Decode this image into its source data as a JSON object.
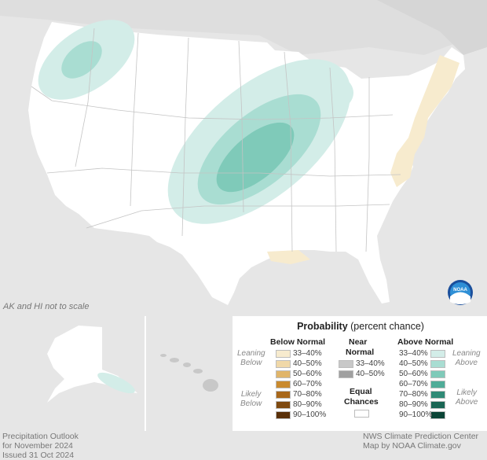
{
  "map_note": "AK and HI not to scale",
  "legend": {
    "title_bold": "Probability",
    "title_rest": " (percent chance)",
    "below_header": "Below Normal",
    "near_header_line1": "Near",
    "near_header_line2": "Normal",
    "above_header": "Above Normal",
    "equal_line1": "Equal",
    "equal_line2": "Chances",
    "leaning_below_1": "Leaning",
    "leaning_below_2": "Below",
    "likely_below_1": "Likely",
    "likely_below_2": "Below",
    "leaning_above_1": "Leaning",
    "leaning_above_2": "Above",
    "likely_above_1": "Likely",
    "likely_above_2": "Above",
    "below_rows": [
      "33–40%",
      "40–50%",
      "50–60%",
      "60–70%",
      "70–80%",
      "80–90%",
      "90–100%"
    ],
    "near_rows": [
      "33–40%",
      "40–50%"
    ],
    "above_rows": [
      "33–40%",
      "40–50%",
      "50–60%",
      "60–70%",
      "70–80%",
      "80–90%",
      "90–100%"
    ],
    "below_colors": [
      "#f7ebce",
      "#f0d8a8",
      "#e0b56a",
      "#c98a2e",
      "#a8671a",
      "#7f4a10",
      "#5a3008"
    ],
    "near_colors": [
      "#c8c8c8",
      "#a0a0a0"
    ],
    "above_colors": [
      "#d3ede8",
      "#a9ddd2",
      "#7fcab9",
      "#4fac98",
      "#2f8a76",
      "#1a6654",
      "#0b4436"
    ],
    "equal_color": "#ffffff"
  },
  "footer_left": {
    "line1": "Precipitation Outlook",
    "line2": "for November 2024",
    "line3": "Issued 31 Oct 2024"
  },
  "footer_right": {
    "line1": "NWS Climate Prediction Center",
    "line2": "Map by NOAA Climate.gov"
  },
  "logo_text": "NOAA",
  "colors": {
    "background": "#e6e6e6",
    "land": "#ffffff",
    "state_lines": "#c4c4c4"
  }
}
